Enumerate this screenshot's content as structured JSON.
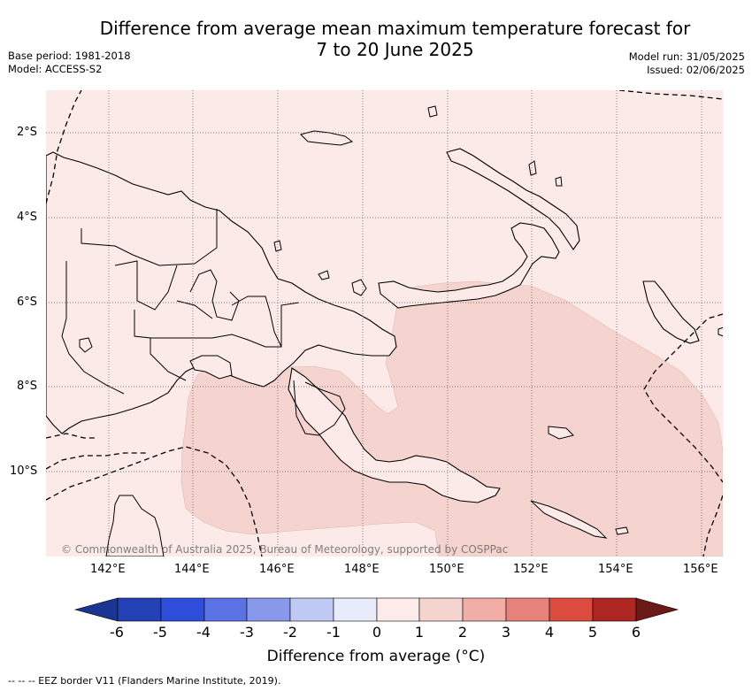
{
  "title": {
    "line1": "Difference from average mean maximum temperature forecast for",
    "line2": "7 to 20 June 2025"
  },
  "meta": {
    "base_period": "Base period: 1981-2018",
    "model": "Model: ACCESS-S2",
    "model_run": "Model run: 31/05/2025",
    "issued": "Issued: 02/06/2025"
  },
  "map": {
    "lat_labels": [
      "2°S",
      "4°S",
      "6°S",
      "8°S",
      "10°S"
    ],
    "lon_labels": [
      "142°E",
      "144°E",
      "146°E",
      "148°E",
      "150°E",
      "152°E",
      "154°E",
      "156°E"
    ],
    "copyright": "© Commonwealth of Australia 2025, Bureau of Meteorology, supported by COSPPac",
    "colors": {
      "background_anomaly_0_1": "#fbeae8",
      "anomaly_1_2": "#f5d4d0",
      "coastline": "#000000"
    }
  },
  "colorbar": {
    "labels": [
      "-6",
      "-5",
      "-4",
      "-3",
      "-2",
      "-1",
      "0",
      "1",
      "2",
      "3",
      "4",
      "5",
      "6"
    ],
    "colors": [
      "#1a3593",
      "#2440b5",
      "#2f4ddb",
      "#5a72e4",
      "#8898ea",
      "#c0c8f4",
      "#e8ebfa",
      "#fcebe8",
      "#f5d3cf",
      "#f0aea6",
      "#e7827a",
      "#db4c3f",
      "#ad2622",
      "#6b1a17"
    ],
    "title": "Difference from average (°C)"
  },
  "footnote": "--  --  -- EEZ border V11 (Flanders Marine Institute, 2019)."
}
